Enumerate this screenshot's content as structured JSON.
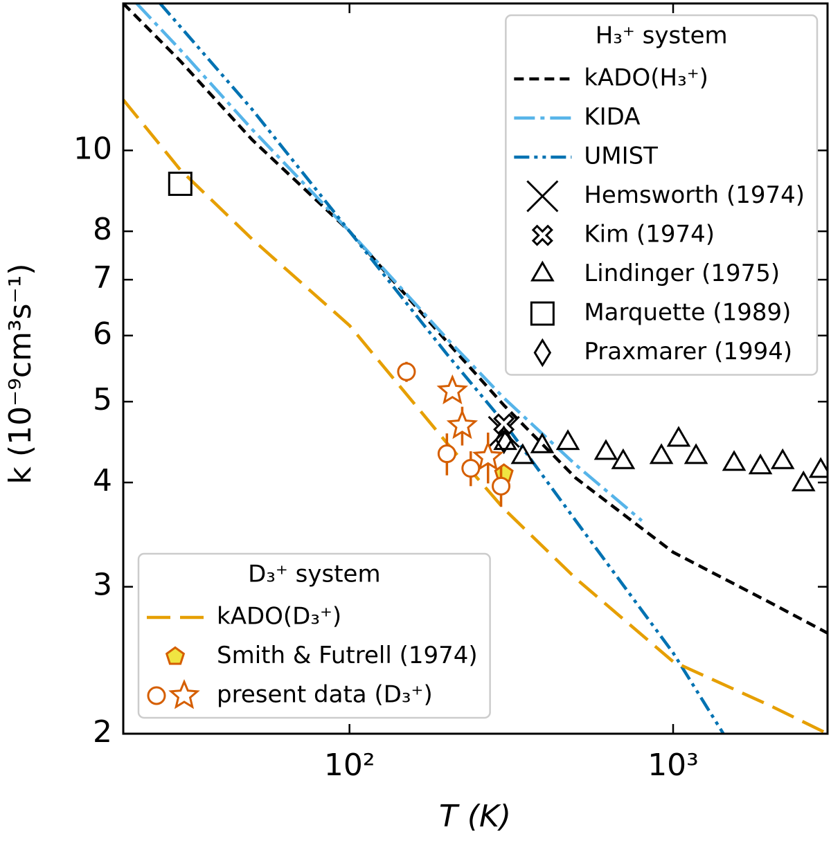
{
  "chart_data": {
    "type": "line",
    "xlabel": "T (K)",
    "ylabel": "k (10⁻⁹cm³s⁻¹)",
    "xscale": "log",
    "yscale": "log",
    "xlim": [
      20,
      3000
    ],
    "ylim": [
      2,
      15
    ],
    "xticks": [
      {
        "value": 100,
        "label": "10²"
      },
      {
        "value": 1000,
        "label": "10³"
      }
    ],
    "yticks": [
      2,
      3,
      4,
      5,
      6,
      7,
      8,
      10
    ],
    "groups": [
      {
        "title": "H₃⁺ system",
        "legend": "upper right",
        "series": [
          {
            "name": "kADO(H₃⁺)",
            "color": "#000000",
            "linestyle": "dashed",
            "x": [
              20,
              30,
              50,
              100,
              200,
              300,
              500,
              1000,
              2000,
              3000
            ],
            "values": [
              15.0,
              12.8,
              10.3,
              8.0,
              5.9,
              4.95,
              4.05,
              3.3,
              2.87,
              2.64
            ]
          },
          {
            "name": "KIDA",
            "color": "#56b4e9",
            "linestyle": "dashdot",
            "x": [
              22,
              30,
              50,
              100,
              200,
              300,
              500,
              800
            ],
            "values": [
              15.0,
              13.2,
              10.6,
              8.0,
              5.95,
              5.05,
              4.2,
              3.6
            ]
          },
          {
            "name": "UMIST",
            "color": "#0072b2",
            "linestyle": "dashdotdot",
            "x": [
              26,
              50,
              100,
              200,
              300,
              500,
              1000,
              1430
            ],
            "values": [
              15.0,
              11.2,
              8.0,
              5.7,
              4.72,
              3.6,
              2.5,
              2.0
            ]
          },
          {
            "name": "Hemsworth (1974)",
            "color": "#000000",
            "marker": "x",
            "fill": "none",
            "x": [
              300
            ],
            "values": [
              4.6
            ]
          },
          {
            "name": "Kim (1974)",
            "color": "#000000",
            "marker": "thickcross",
            "fill": "#ffffff",
            "x": [
              300
            ],
            "values": [
              4.7
            ]
          },
          {
            "name": "Lindinger (1975)",
            "color": "#000000",
            "marker": "triangle",
            "fill": "none",
            "x": [
              303,
              343,
              394,
              473,
              620,
              701,
              920,
              1040,
              1177,
              1543,
              1861,
              2180,
              2528,
              2858
            ],
            "values": [
              4.46,
              4.29,
              4.42,
              4.46,
              4.34,
              4.23,
              4.29,
              4.5,
              4.29,
              4.21,
              4.17,
              4.23,
              3.98,
              4.13
            ]
          },
          {
            "name": "Marquette (1989)",
            "color": "#000000",
            "marker": "square",
            "fill": "none",
            "x": [
              30
            ],
            "values": [
              9.12
            ]
          },
          {
            "name": "Praxmarer (1994)",
            "color": "#000000",
            "marker": "diamond",
            "fill": "none",
            "x": [
              300
            ],
            "values": [
              4.5
            ]
          }
        ]
      },
      {
        "title": "D₃⁺ system",
        "legend": "lower left",
        "series": [
          {
            "name": "kADO(D₃⁺)",
            "color": "#e69f00",
            "linestyle": "longdash",
            "x": [
              20,
              30,
              50,
              100,
              200,
              300,
              500,
              1000,
              2000,
              3000
            ],
            "values": [
              11.5,
              9.48,
              7.83,
              6.17,
              4.46,
              3.72,
              3.07,
              2.44,
              2.16,
              2.0
            ]
          },
          {
            "name": "Smith & Futrell (1974)",
            "color": "#d55e00",
            "marker": "pentagon",
            "fill": "#f0e442",
            "x": [
              300
            ],
            "values": [
              4.1
            ]
          },
          {
            "name": "present data (D₃⁺)",
            "color": "#d55e00",
            "parts": [
              {
                "marker": "circle",
                "fill": "#ffffff",
                "x": [
                  150,
                  200,
                  237,
                  294
                ],
                "values": [
                  5.43,
                  4.33,
                  4.16,
                  3.96
                ],
                "errors": [
                  0.15,
                  0.25,
                  0.2,
                  0.22
                ]
              },
              {
                "marker": "star",
                "fill": "#ffffff",
                "x": [
                  208,
                  223,
                  268
                ],
                "values": [
                  5.15,
                  4.68,
                  4.29
                ],
                "errors": [
                  0.1,
                  0.25,
                  0.3
                ]
              }
            ]
          }
        ]
      }
    ]
  }
}
